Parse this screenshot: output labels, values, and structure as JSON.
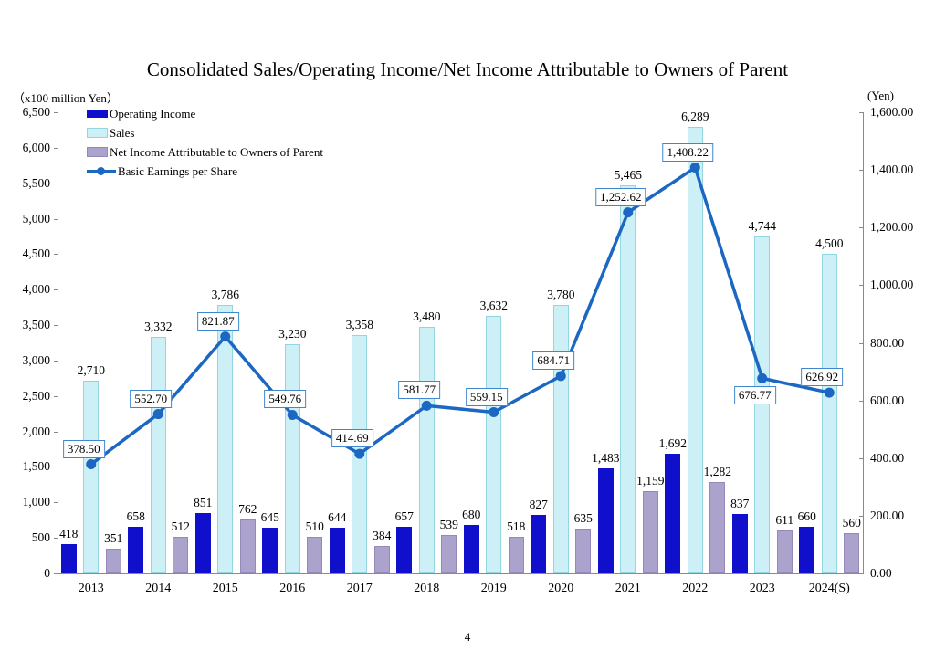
{
  "title": "Consolidated Sales/Operating Income/Net Income Attributable to Owners of Parent",
  "page_number": "4",
  "chart_data": {
    "type": "combo-bar-line",
    "title": "Consolidated Sales/Operating Income/Net Income Attributable to Owners of Parent",
    "grid": false,
    "legend_position": "top-left",
    "categories": [
      "2013",
      "2014",
      "2015",
      "2016",
      "2017",
      "2018",
      "2019",
      "2020",
      "2021",
      "2022",
      "2023",
      "2024(S)"
    ],
    "left_axis": {
      "unit": "（x100 million Yen）",
      "min": 0,
      "max": 6500,
      "step": 500,
      "tick_labels": [
        "6,500",
        "6,000",
        "5,500",
        "5,000",
        "4,500",
        "4,000",
        "3,500",
        "3,000",
        "2,500",
        "2,000",
        "1,500",
        "1,000",
        "500",
        "0"
      ]
    },
    "right_axis": {
      "unit": "(Yen)",
      "min": 0,
      "max": 1600,
      "step": 200,
      "tick_labels": [
        "1,600.00",
        "1,400.00",
        "1,200.00",
        "1,000.00",
        "800.00",
        "600.00",
        "400.00",
        "200.00",
        "0.00"
      ]
    },
    "series": [
      {
        "name": "Operating Income",
        "type": "bar",
        "axis": "left",
        "color": "#1010CC",
        "values": [
          418,
          658,
          851,
          645,
          644,
          657,
          680,
          827,
          1483,
          1692,
          837,
          660
        ],
        "labels": [
          "418",
          "658",
          "851",
          "645",
          "644",
          "657",
          "680",
          "827",
          "1,483",
          "1,692",
          "837",
          "660"
        ]
      },
      {
        "name": "Sales",
        "type": "bar",
        "axis": "left",
        "color": "#CDEFF6",
        "border_color": "#93D5E1",
        "values": [
          2710,
          3332,
          3786,
          3230,
          3358,
          3480,
          3632,
          3780,
          5465,
          6289,
          4744,
          4500
        ],
        "labels": [
          "2,710",
          "3,332",
          "3,786",
          "3,230",
          "3,358",
          "3,480",
          "3,632",
          "3,780",
          "5,465",
          "6,289",
          "4,744",
          "4,500"
        ]
      },
      {
        "name": "Net Income Attributable to Owners of Parent",
        "type": "bar",
        "axis": "left",
        "color": "#ACA3CC",
        "border_color": "#9589BC",
        "values": [
          351,
          512,
          762,
          510,
          384,
          539,
          518,
          635,
          1159,
          1282,
          611,
          560
        ],
        "labels": [
          "351",
          "512",
          "762",
          "510",
          "384",
          "539",
          "518",
          "635",
          "1,159",
          "1,282",
          "611",
          "560"
        ]
      },
      {
        "name": "Basic Earnings per Share",
        "type": "line",
        "axis": "right",
        "color": "#1B67C2",
        "label_box_border": "#3F87CE",
        "values": [
          378.5,
          552.7,
          821.87,
          549.76,
          414.69,
          581.77,
          559.15,
          684.71,
          1252.62,
          1408.22,
          676.77,
          626.92
        ],
        "labels": [
          "378.50",
          "552.70",
          "821.87",
          "549.76",
          "414.69",
          "581.77",
          "559.15",
          "684.71",
          "1,252.62",
          "1,408.22",
          "676.77",
          "626.92"
        ],
        "label_side": [
          "above",
          "above",
          "above",
          "above",
          "above",
          "above",
          "above",
          "above",
          "above",
          "above",
          "below",
          "above"
        ]
      }
    ]
  }
}
